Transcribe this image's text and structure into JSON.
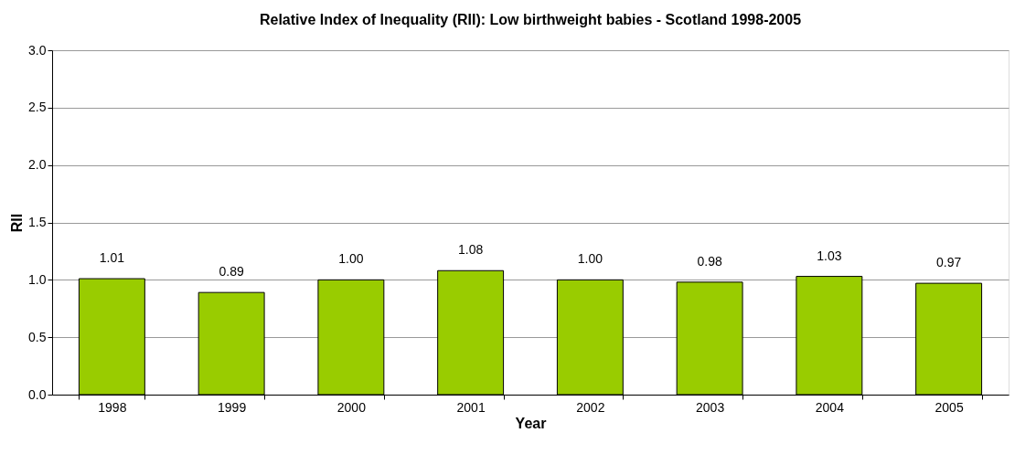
{
  "chart_data": {
    "type": "bar",
    "title": "Relative Index of Inequality (RII): Low birthweight babies - Scotland 1998-2005",
    "xlabel": "Year",
    "ylabel": "RII",
    "categories": [
      "1998",
      "1999",
      "2000",
      "2001",
      "2002",
      "2003",
      "2004",
      "2005"
    ],
    "values": [
      1.01,
      0.89,
      1.0,
      1.08,
      1.0,
      0.98,
      1.03,
      0.97
    ],
    "value_labels": [
      "1.01",
      "0.89",
      "1.00",
      "1.08",
      "1.00",
      "0.98",
      "1.03",
      "0.97"
    ],
    "color": "#99cc00",
    "ylim": [
      0,
      3
    ],
    "yticks": [
      {
        "value": 0,
        "label": "0.0"
      },
      {
        "value": 0.5,
        "label": "0.5"
      },
      {
        "value": 1,
        "label": "1.0"
      },
      {
        "value": 1.5,
        "label": "1.5"
      },
      {
        "value": 2,
        "label": "2.0"
      },
      {
        "value": 2.5,
        "label": "2.5"
      },
      {
        "value": 3,
        "label": "3.0"
      }
    ],
    "grid": "y"
  }
}
